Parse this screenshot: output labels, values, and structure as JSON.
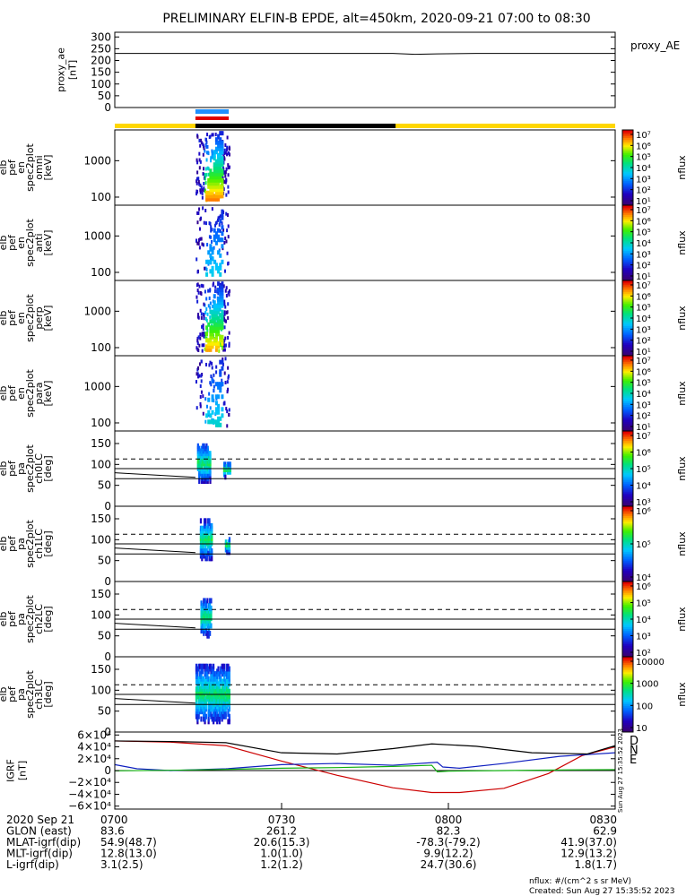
{
  "title": "PRELIMINARY ELFIN-B EPDE, alt=450km, 2020-09-21 07:00 to 08:30",
  "footer": {
    "unit_note": "nflux: #/(cm^2 s sr MeV)",
    "created": "Created: Sun Aug 27 15:35:52 2023",
    "side_stamp": "Sun Aug 27 15:35:52 2023"
  },
  "colors": {
    "science_bar": "#ffd700",
    "shadow_bar": "#000000",
    "blue_marker": "#1e90ff",
    "red_marker": "#e00000",
    "grf_d": "#cc0000",
    "grf_n": "#1020c0",
    "grf_e": "#10b010"
  },
  "colorbar_legend_label": "nflux",
  "chart_data": [
    {
      "id": "proxy_ae",
      "type": "line",
      "ylabel_lines": [
        "proxy_ae",
        "[nT]"
      ],
      "legend": "proxy_AE",
      "ylim": [
        0,
        320
      ],
      "yticks": [
        0,
        50,
        100,
        150,
        200,
        250,
        300
      ],
      "x_minutes": [
        0,
        20,
        40,
        50,
        54,
        58,
        65,
        90
      ],
      "values": [
        230,
        230,
        230,
        230,
        226,
        228,
        230,
        230
      ]
    },
    {
      "id": "spec_omni",
      "type": "heatmap",
      "ylabel_lines": [
        "elb",
        "pef",
        "en",
        "spec2plot",
        "omni",
        "[keV]"
      ],
      "ylog": true,
      "ylim": [
        60,
        7000
      ],
      "yticks": [
        100,
        1000
      ],
      "colorbar": {
        "scale": "log",
        "min_exp": 1,
        "max_exp": 7,
        "labels": [
          "10¹",
          "10²",
          "10³",
          "10⁴",
          "10⁵",
          "10⁶",
          "10⁷"
        ]
      },
      "x_range_minutes": [
        14.5,
        20.5
      ],
      "intensity": 1.0
    },
    {
      "id": "spec_anti",
      "type": "heatmap",
      "ylabel_lines": [
        "elb",
        "pef",
        "en",
        "spec2plot",
        "anti",
        "[keV]"
      ],
      "ylog": true,
      "ylim": [
        60,
        7000
      ],
      "yticks": [
        100,
        1000
      ],
      "colorbar": {
        "scale": "log",
        "min_exp": 1,
        "max_exp": 7,
        "labels": [
          "10¹",
          "10²",
          "10³",
          "10⁴",
          "10⁵",
          "10⁶",
          "10⁷"
        ]
      },
      "x_range_minutes": [
        14.5,
        20.5
      ],
      "intensity": 0.35
    },
    {
      "id": "spec_perp",
      "type": "heatmap",
      "ylabel_lines": [
        "elb",
        "pef",
        "en",
        "spec2plot",
        "perp",
        "[keV]"
      ],
      "ylog": true,
      "ylim": [
        60,
        7000
      ],
      "yticks": [
        100,
        1000
      ],
      "colorbar": {
        "scale": "log",
        "min_exp": 1,
        "max_exp": 7,
        "labels": [
          "10¹",
          "10²",
          "10³",
          "10⁴",
          "10⁵",
          "10⁶",
          "10⁷"
        ]
      },
      "x_range_minutes": [
        14.5,
        20.5
      ],
      "intensity": 0.95
    },
    {
      "id": "spec_para",
      "type": "heatmap",
      "ylabel_lines": [
        "elb",
        "pef",
        "en",
        "spec2plot",
        "para",
        "[keV]"
      ],
      "ylog": true,
      "ylim": [
        60,
        7000
      ],
      "yticks": [
        100,
        1000
      ],
      "colorbar": {
        "scale": "log",
        "min_exp": 1,
        "max_exp": 7,
        "labels": [
          "10¹",
          "10²",
          "10³",
          "10⁴",
          "10⁵",
          "10⁶",
          "10⁷"
        ]
      },
      "x_range_minutes": [
        14.5,
        20.5
      ],
      "intensity": 0.4
    },
    {
      "id": "pa_ch0",
      "type": "heatmap",
      "ylabel_lines": [
        "elb",
        "pef",
        "pa",
        "spec2plot",
        "ch0LC",
        "[deg]"
      ],
      "ylim": [
        0,
        180
      ],
      "yticks": [
        0,
        50,
        100,
        150
      ],
      "colorbar": {
        "scale": "log",
        "labels": [
          "10³",
          "10⁴",
          "10⁵",
          "10⁶",
          "10⁷"
        ]
      },
      "dashed_y": 113,
      "solid_y": [
        90,
        66
      ],
      "losscone_line": {
        "x": [
          0,
          14.5
        ],
        "y": [
          80,
          69
        ]
      },
      "blobs": [
        [
          14.8,
          17.2,
          60,
          150
        ],
        [
          19.5,
          20.7,
          70,
          105
        ]
      ]
    },
    {
      "id": "pa_ch1",
      "type": "heatmap",
      "ylabel_lines": [
        "elb",
        "pef",
        "pa",
        "spec2plot",
        "ch1LC",
        "[deg]"
      ],
      "ylim": [
        0,
        180
      ],
      "yticks": [
        0,
        50,
        100,
        150
      ],
      "colorbar": {
        "scale": "log",
        "labels": [
          "10⁴",
          "10⁵",
          "10⁶"
        ]
      },
      "dashed_y": 113,
      "solid_y": [
        90,
        66
      ],
      "losscone_line": {
        "x": [
          0,
          14.5
        ],
        "y": [
          80,
          69
        ]
      },
      "blobs": [
        [
          15.3,
          17.3,
          55,
          150
        ],
        [
          19.8,
          20.6,
          70,
          105
        ]
      ]
    },
    {
      "id": "pa_ch2",
      "type": "heatmap",
      "ylabel_lines": [
        "elb",
        "pef",
        "pa",
        "spec2plot",
        "ch2LC",
        "[deg]"
      ],
      "ylim": [
        0,
        180
      ],
      "yticks": [
        0,
        50,
        100,
        150
      ],
      "colorbar": {
        "scale": "log",
        "labels": [
          "10²",
          "10³",
          "10⁴",
          "10⁵",
          "10⁶"
        ]
      },
      "dashed_y": 113,
      "solid_y": [
        90,
        66
      ],
      "losscone_line": {
        "x": [
          0,
          14.5
        ],
        "y": [
          80,
          69
        ]
      },
      "blobs": [
        [
          15.4,
          17.2,
          50,
          140
        ]
      ]
    },
    {
      "id": "pa_ch3",
      "type": "heatmap",
      "ylabel_lines": [
        "elb",
        "pef",
        "pa",
        "spec2plot",
        "ch3LC",
        "[deg]"
      ],
      "ylim": [
        0,
        180
      ],
      "yticks": [
        0,
        50,
        100,
        150
      ],
      "colorbar": {
        "scale": "log",
        "labels": [
          "10",
          "100",
          "1000",
          "10000"
        ]
      },
      "dashed_y": 113,
      "solid_y": [
        90,
        66
      ],
      "losscone_line": {
        "x": [
          0,
          14.5
        ],
        "y": [
          80,
          69
        ]
      },
      "blobs": [
        [
          14.5,
          20.5,
          25,
          160
        ]
      ]
    },
    {
      "id": "igrf",
      "type": "line",
      "ylabel_lines": [
        "IGRF",
        "[nT]"
      ],
      "ylim": [
        -65000,
        65000
      ],
      "yticks": [
        -60000,
        -40000,
        -20000,
        0,
        20000,
        40000,
        60000
      ],
      "ytick_labels": [
        "−6×10⁴",
        "−4×10⁴",
        "−2×10⁴",
        "0",
        "2×10⁴",
        "4×10⁴",
        "6×10⁴"
      ],
      "legend": [
        "D",
        "N",
        "E"
      ],
      "series": [
        {
          "name": "D",
          "color": "#cc0000",
          "x": [
            0,
            10,
            20,
            30,
            40,
            50,
            57,
            62,
            70,
            78,
            84,
            90
          ],
          "y": [
            50000,
            48000,
            42000,
            16000,
            -8000,
            -29000,
            -37000,
            -37000,
            -30000,
            -5000,
            25000,
            40000
          ]
        },
        {
          "name": "N",
          "color": "#1020c0",
          "x": [
            0,
            4,
            10,
            20,
            30,
            40,
            50,
            58,
            59,
            62,
            70,
            80,
            90
          ],
          "y": [
            10000,
            3000,
            0,
            3000,
            10000,
            12000,
            9000,
            14000,
            6000,
            4000,
            12000,
            24000,
            30000
          ]
        },
        {
          "name": "E",
          "color": "#10b010",
          "x": [
            0,
            10,
            20,
            30,
            40,
            50,
            57,
            58,
            60,
            70,
            80,
            90
          ],
          "y": [
            -500,
            500,
            2000,
            4000,
            5000,
            7000,
            9000,
            -2000,
            -1000,
            0,
            1000,
            1500
          ]
        },
        {
          "name": "",
          "color": "#000000",
          "x": [
            0,
            10,
            20,
            30,
            40,
            50,
            57,
            65,
            75,
            85,
            90
          ],
          "y": [
            50000,
            49000,
            47000,
            30000,
            28000,
            37000,
            45000,
            41000,
            30000,
            28000,
            42000
          ]
        }
      ]
    }
  ],
  "bars": {
    "science_x_minutes": [
      0,
      90
    ],
    "shadow_x_minutes": [
      14.5,
      50.5
    ],
    "blue_x_minutes": [
      14.5,
      20.5
    ],
    "red_x_minutes": [
      14.5,
      20.5
    ]
  },
  "time_axis": {
    "tick_minutes": [
      0,
      30,
      60,
      90
    ],
    "row_labels": [
      "2020 Sep 21",
      "GLON (east)",
      "MLAT-igrf(dip)",
      "MLT-igrf(dip)",
      "L-igrf(dip)"
    ],
    "row_values": [
      [
        "0700",
        "0730",
        "0800",
        "0830"
      ],
      [
        "83.6",
        "261.2",
        "82.3",
        "62.9"
      ],
      [
        "54.9(48.7)",
        "20.6(15.3)",
        "-78.3(-79.2)",
        "41.9(37.0)"
      ],
      [
        "12.8(13.0)",
        "1.0(1.0)",
        "9.9(12.2)",
        "12.9(13.2)"
      ],
      [
        "3.1(2.5)",
        "1.2(1.2)",
        "24.7(30.6)",
        "1.8(1.7)"
      ]
    ]
  }
}
